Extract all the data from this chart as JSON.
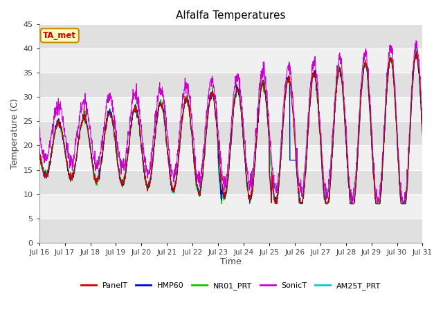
{
  "title": "Alfalfa Temperatures",
  "xlabel": "Time",
  "ylabel": "Temperature (C)",
  "ylim": [
    0,
    45
  ],
  "yticks": [
    0,
    5,
    10,
    15,
    20,
    25,
    30,
    35,
    40,
    45
  ],
  "annotation_text": "TA_met",
  "annotation_bg": "#FFFFC0",
  "annotation_border": "#CC8800",
  "annotation_text_color": "#CC0000",
  "series_colors": {
    "PanelT": "#CC0000",
    "HMP60": "#0000CC",
    "NR01_PRT": "#00CC00",
    "SonicT": "#CC00CC",
    "AM25T_PRT": "#00CCCC"
  },
  "bg_bands": [
    [
      0,
      5,
      "#E0E0E0"
    ],
    [
      5,
      10,
      "#F0F0F0"
    ],
    [
      10,
      15,
      "#E0E0E0"
    ],
    [
      15,
      20,
      "#F0F0F0"
    ],
    [
      20,
      25,
      "#E0E0E0"
    ],
    [
      25,
      30,
      "#F0F0F0"
    ],
    [
      30,
      35,
      "#E0E0E0"
    ],
    [
      35,
      40,
      "#F0F0F0"
    ],
    [
      40,
      45,
      "#E0E0E0"
    ]
  ],
  "figsize": [
    6.4,
    4.8
  ],
  "dpi": 100
}
